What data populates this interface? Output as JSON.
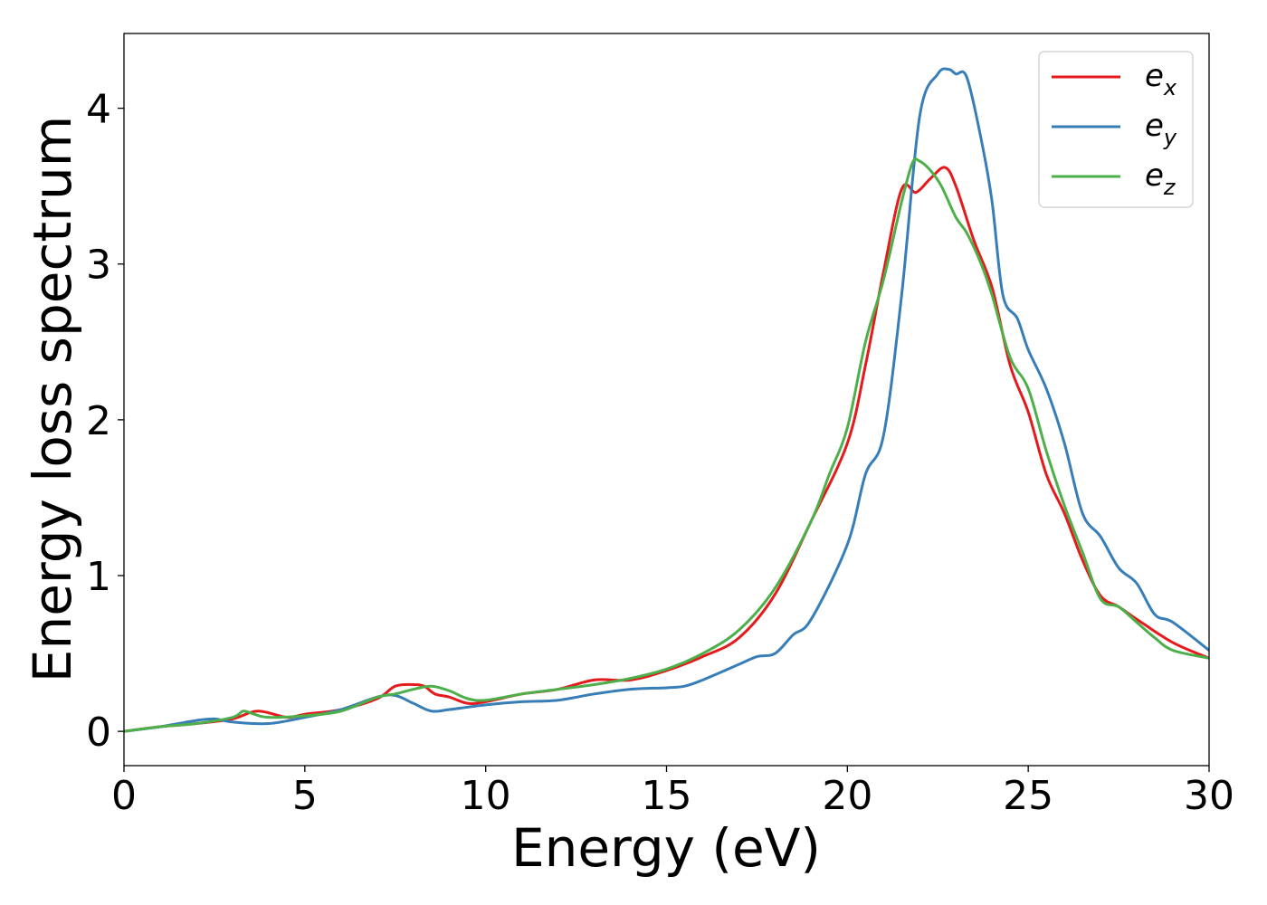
{
  "chart_data": {
    "type": "line",
    "xlabel": "Energy (eV)",
    "ylabel": "Energy loss spectrum",
    "xlim": [
      0,
      30
    ],
    "ylim": [
      -0.22,
      4.48
    ],
    "xticks": [
      0,
      5,
      10,
      15,
      20,
      25,
      30
    ],
    "xtick_labels": [
      "0",
      "5",
      "10",
      "15",
      "20",
      "25",
      "30"
    ],
    "yticks": [
      0,
      1,
      2,
      3,
      4
    ],
    "ytick_labels": [
      "0",
      "1",
      "2",
      "3",
      "4"
    ],
    "grid": false,
    "legend_position": "top-right",
    "series": [
      {
        "name": "e_x",
        "legend_base": "e",
        "legend_sub": "x",
        "color": "#e41a1c",
        "x": [
          0,
          1,
          2,
          3,
          3.7,
          4.5,
          5,
          6,
          7,
          7.5,
          8,
          8.3,
          8.6,
          9,
          9.5,
          10,
          11,
          12,
          13,
          14,
          15,
          16,
          17,
          18,
          19,
          20,
          20.5,
          21,
          21.5,
          21.9,
          22.3,
          22.7,
          23,
          23.5,
          24,
          24.5,
          25,
          25.5,
          26,
          26.5,
          27,
          27.5,
          28,
          29,
          30
        ],
        "y": [
          0,
          0.03,
          0.05,
          0.08,
          0.13,
          0.09,
          0.11,
          0.14,
          0.21,
          0.29,
          0.3,
          0.29,
          0.24,
          0.22,
          0.18,
          0.19,
          0.24,
          0.27,
          0.33,
          0.33,
          0.39,
          0.48,
          0.6,
          0.88,
          1.35,
          1.85,
          2.35,
          2.95,
          3.48,
          3.46,
          3.55,
          3.62,
          3.5,
          3.15,
          2.85,
          2.35,
          2.05,
          1.65,
          1.4,
          1.1,
          0.87,
          0.8,
          0.72,
          0.57,
          0.47
        ]
      },
      {
        "name": "e_y",
        "legend_base": "e",
        "legend_sub": "y",
        "color": "#377eb8",
        "x": [
          0,
          1,
          2,
          2.5,
          3,
          4,
          5,
          6,
          7,
          7.5,
          8,
          8.5,
          9,
          10,
          11,
          12,
          13,
          14,
          15,
          15.5,
          16,
          17,
          17.5,
          18,
          18.5,
          19,
          20,
          20.5,
          21,
          21.5,
          22,
          22.5,
          22.8,
          23,
          23.3,
          23.7,
          24,
          24.3,
          24.7,
          25,
          25.5,
          26,
          26.5,
          27,
          27.5,
          28,
          28.5,
          29,
          30
        ],
        "y": [
          0,
          0.03,
          0.07,
          0.08,
          0.06,
          0.05,
          0.09,
          0.14,
          0.22,
          0.23,
          0.18,
          0.13,
          0.14,
          0.17,
          0.19,
          0.2,
          0.24,
          0.27,
          0.28,
          0.29,
          0.33,
          0.43,
          0.48,
          0.5,
          0.62,
          0.72,
          1.2,
          1.65,
          1.9,
          2.8,
          3.95,
          4.22,
          4.25,
          4.22,
          4.2,
          3.8,
          3.4,
          2.8,
          2.65,
          2.45,
          2.2,
          1.85,
          1.4,
          1.25,
          1.05,
          0.95,
          0.75,
          0.7,
          0.52
        ]
      },
      {
        "name": "e_z",
        "legend_base": "e",
        "legend_sub": "z",
        "color": "#4daf4a",
        "x": [
          0,
          1,
          2,
          3,
          3.3,
          3.6,
          4,
          5,
          6,
          7,
          7.5,
          8,
          8.5,
          9,
          9.5,
          10,
          11,
          12,
          13,
          14,
          15,
          16,
          17,
          18,
          19,
          19.5,
          20,
          20.5,
          21,
          21.5,
          21.8,
          22,
          22.3,
          22.6,
          23,
          23.3,
          23.7,
          24,
          24.5,
          25,
          25.5,
          26,
          26.5,
          27,
          27.5,
          28,
          28.5,
          29,
          30
        ],
        "y": [
          0,
          0.03,
          0.05,
          0.09,
          0.13,
          0.11,
          0.09,
          0.1,
          0.13,
          0.22,
          0.24,
          0.27,
          0.29,
          0.26,
          0.21,
          0.2,
          0.24,
          0.27,
          0.3,
          0.34,
          0.4,
          0.5,
          0.65,
          0.92,
          1.35,
          1.65,
          1.95,
          2.5,
          2.9,
          3.4,
          3.65,
          3.66,
          3.6,
          3.5,
          3.3,
          3.2,
          3.0,
          2.8,
          2.4,
          2.2,
          1.8,
          1.45,
          1.15,
          0.85,
          0.8,
          0.7,
          0.6,
          0.52,
          0.47
        ]
      }
    ]
  }
}
